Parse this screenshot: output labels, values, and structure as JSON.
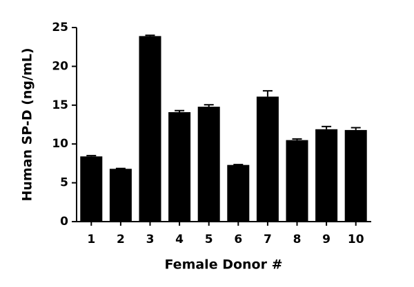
{
  "chart_data": {
    "type": "bar",
    "x_label": "Female Donor #",
    "y_label": "Human SP-D (ng/mL)",
    "categories": [
      "1",
      "2",
      "3",
      "4",
      "5",
      "6",
      "7",
      "8",
      "9",
      "10"
    ],
    "values": [
      8.4,
      6.8,
      23.9,
      14.1,
      14.8,
      7.3,
      16.1,
      10.5,
      11.9,
      11.8
    ],
    "errors": [
      0.1,
      0.05,
      0.1,
      0.2,
      0.25,
      0.05,
      0.75,
      0.15,
      0.35,
      0.3
    ],
    "color": "#000000",
    "ylim": [
      0,
      25
    ],
    "yticks": [
      0,
      5,
      10,
      15,
      20,
      25
    ],
    "grid": false
  }
}
